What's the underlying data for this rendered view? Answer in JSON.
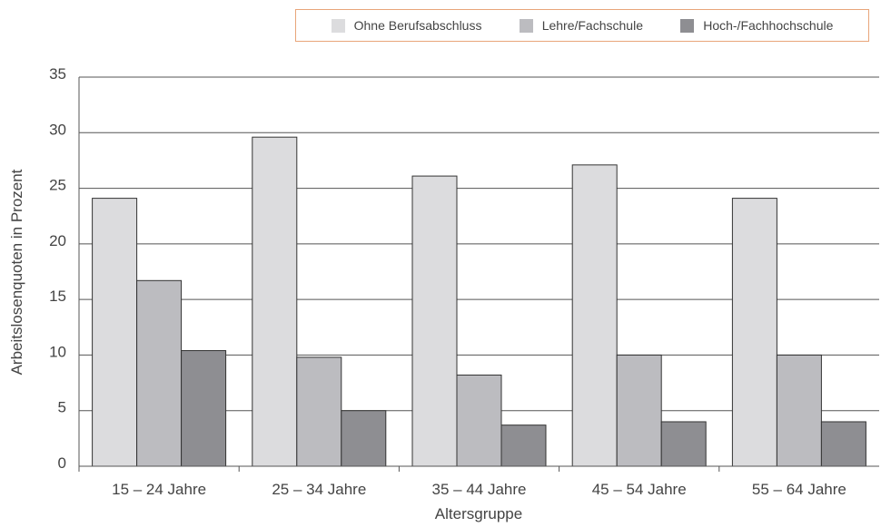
{
  "legend": {
    "items": [
      {
        "label": "Ohne Berufsabschluss",
        "color": "#dcdcde"
      },
      {
        "label": "Lehre/Fachschule",
        "color": "#bcbcc0"
      },
      {
        "label": "Hoch-/Fachhochschule",
        "color": "#8e8e92"
      }
    ]
  },
  "chart_data": {
    "type": "bar",
    "title": "",
    "xlabel": "Altersgruppe",
    "ylabel": "Arbeitslosenquoten in Prozent",
    "ylim": [
      0,
      35
    ],
    "yticks": [
      0,
      5,
      10,
      15,
      20,
      25,
      30,
      35
    ],
    "grid": true,
    "legend_position": "top-right",
    "categories": [
      "15 – 24 Jahre",
      "25 – 34 Jahre",
      "35 – 44 Jahre",
      "45 – 54 Jahre",
      "55 – 64 Jahre"
    ],
    "series": [
      {
        "name": "Ohne Berufsabschluss",
        "color": "#dcdcde",
        "values": [
          24.1,
          29.6,
          26.1,
          27.1,
          24.1
        ]
      },
      {
        "name": "Lehre/Fachschule",
        "color": "#bcbcc0",
        "values": [
          16.7,
          9.8,
          8.2,
          10.0,
          10.0
        ]
      },
      {
        "name": "Hoch-/Fachhochschule",
        "color": "#8e8e92",
        "values": [
          10.4,
          5.0,
          3.7,
          4.0,
          4.0
        ]
      }
    ]
  }
}
